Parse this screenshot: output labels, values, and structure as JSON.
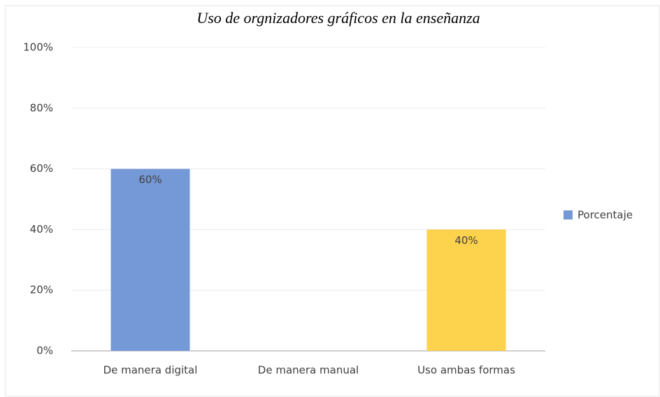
{
  "chart_data": {
    "type": "bar",
    "title": "Uso de orgnizadores gráficos en la enseñanza",
    "categories": [
      "De manera digital",
      "De manera manual",
      "Uso ambas formas"
    ],
    "series": [
      {
        "name": "Porcentaje",
        "color": "#7599d6",
        "colors": [
          "#7599d6",
          "#7599d6",
          "#fdd24c"
        ],
        "values": [
          60,
          0,
          40
        ],
        "value_labels": [
          "60%",
          null,
          "40%"
        ]
      }
    ],
    "ylim": [
      0,
      100
    ],
    "yticks": [
      {
        "value": 0,
        "label": "0%"
      },
      {
        "value": 20,
        "label": "20%"
      },
      {
        "value": 40,
        "label": "40%"
      },
      {
        "value": 60,
        "label": "60%"
      },
      {
        "value": 80,
        "label": "80%"
      },
      {
        "value": 100,
        "label": "100%"
      }
    ],
    "grid": true,
    "legend": "right"
  }
}
